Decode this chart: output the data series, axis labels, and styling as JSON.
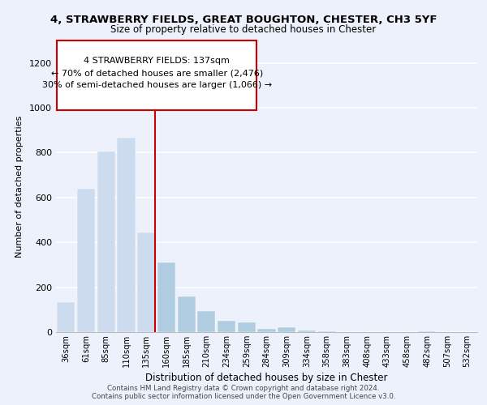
{
  "title": "4, STRAWBERRY FIELDS, GREAT BOUGHTON, CHESTER, CH3 5YF",
  "subtitle": "Size of property relative to detached houses in Chester",
  "xlabel": "Distribution of detached houses by size in Chester",
  "ylabel": "Number of detached properties",
  "bar_labels": [
    "36sqm",
    "61sqm",
    "85sqm",
    "110sqm",
    "135sqm",
    "160sqm",
    "185sqm",
    "210sqm",
    "234sqm",
    "259sqm",
    "284sqm",
    "309sqm",
    "334sqm",
    "358sqm",
    "383sqm",
    "408sqm",
    "433sqm",
    "458sqm",
    "482sqm",
    "507sqm",
    "532sqm"
  ],
  "bar_heights": [
    135,
    640,
    805,
    865,
    445,
    310,
    158,
    95,
    52,
    42,
    15,
    22,
    8,
    3,
    0,
    0,
    0,
    0,
    5,
    0,
    0
  ],
  "highlight_index": 4,
  "highlight_color": "#ccdcee",
  "normal_color": "#b0cce0",
  "highlight_line_color": "#cc0000",
  "highlight_line_index": 4,
  "ylim": [
    0,
    1300
  ],
  "yticks": [
    0,
    200,
    400,
    600,
    800,
    1000,
    1200
  ],
  "annotation_text": "4 STRAWBERRY FIELDS: 137sqm\n← 70% of detached houses are smaller (2,476)\n30% of semi-detached houses are larger (1,066) →",
  "annotation_box_color": "#ffffff",
  "annotation_box_edge": "#cc0000",
  "footer_line1": "Contains HM Land Registry data © Crown copyright and database right 2024.",
  "footer_line2": "Contains public sector information licensed under the Open Government Licence v3.0.",
  "background_color": "#edf1fb",
  "grid_color": "#ffffff"
}
